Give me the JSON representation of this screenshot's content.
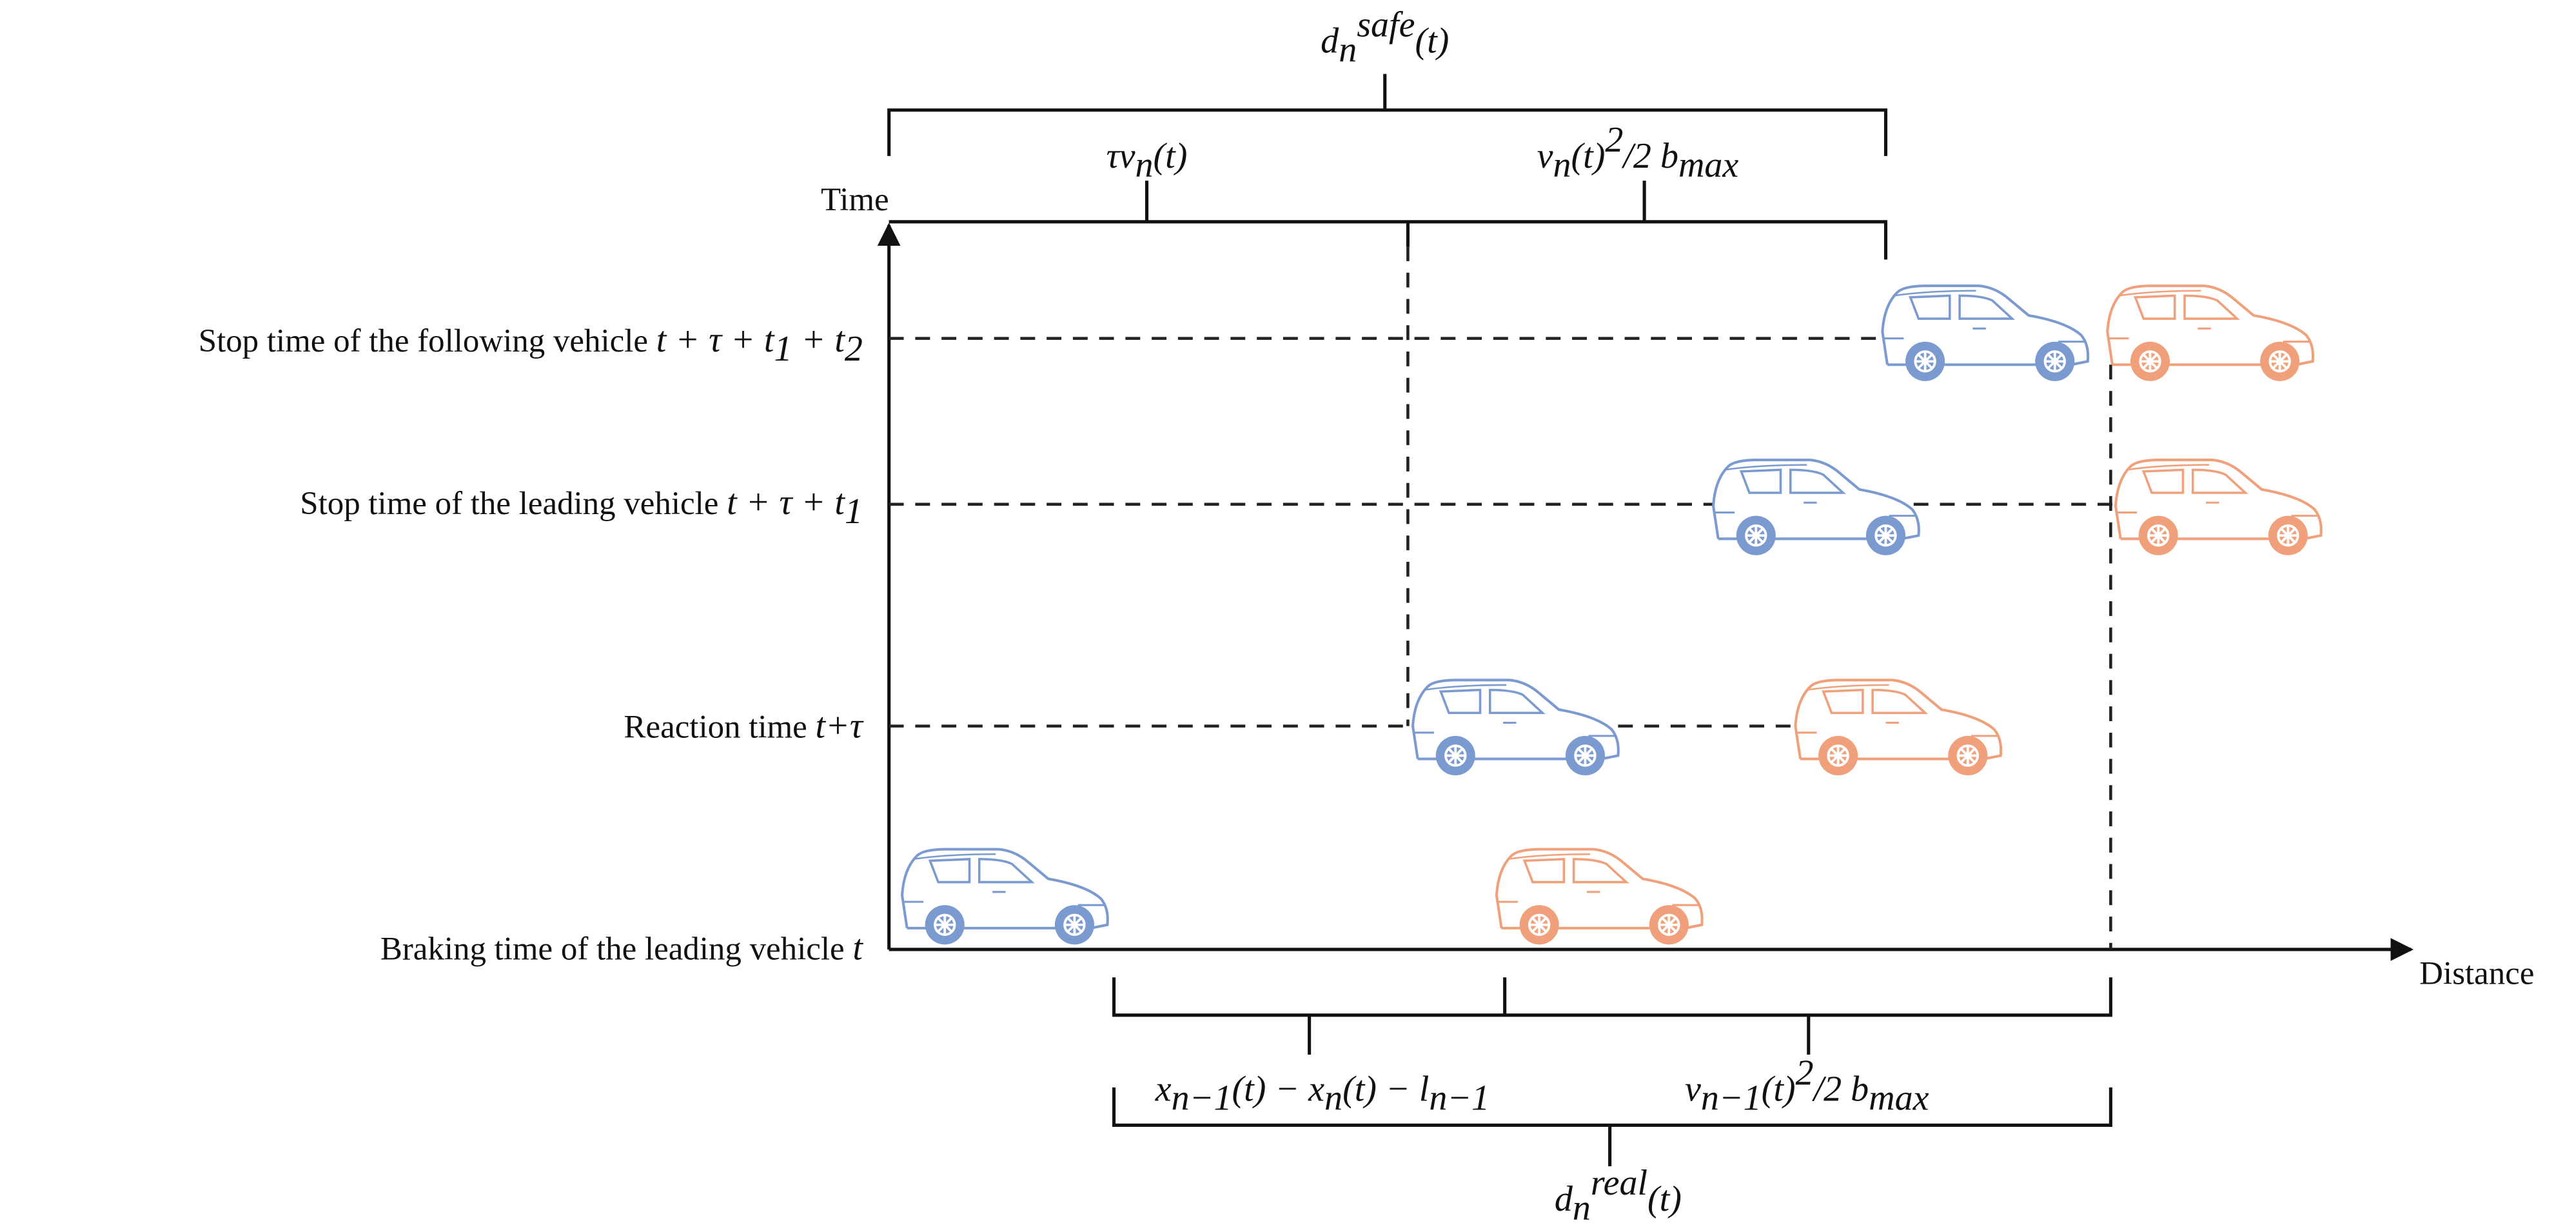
{
  "axes": {
    "y_label": "Time",
    "x_label": "Distance"
  },
  "math": {
    "d_safe": [
      {
        "text": "d",
        "pos": "base"
      },
      {
        "text": "n",
        "pos": "sub"
      },
      {
        "text": "safe",
        "pos": "sup"
      },
      {
        "text": "(t)",
        "pos": "base"
      }
    ],
    "reaction_distance": [
      {
        "text": "τv",
        "pos": "base"
      },
      {
        "text": "n",
        "pos": "sub"
      },
      {
        "text": "(t)",
        "pos": "base"
      }
    ],
    "following_braking": [
      {
        "text": "v",
        "pos": "base"
      },
      {
        "text": "n",
        "pos": "sub"
      },
      {
        "text": "(t)",
        "pos": "base"
      },
      {
        "text": "2",
        "pos": "sup"
      },
      {
        "text": "/2 b",
        "pos": "base"
      },
      {
        "text": "max",
        "pos": "sub"
      }
    ],
    "gap": [
      {
        "text": "x",
        "pos": "base"
      },
      {
        "text": "n−1",
        "pos": "sub"
      },
      {
        "text": "(t) − x",
        "pos": "base"
      },
      {
        "text": "n",
        "pos": "sub"
      },
      {
        "text": "(t) − l",
        "pos": "base"
      },
      {
        "text": "n−1",
        "pos": "sub"
      }
    ],
    "leading_braking": [
      {
        "text": "v",
        "pos": "base"
      },
      {
        "text": "n−1",
        "pos": "sub"
      },
      {
        "text": "(t)",
        "pos": "base"
      },
      {
        "text": "2",
        "pos": "sup"
      },
      {
        "text": "/2 b",
        "pos": "base"
      },
      {
        "text": "max",
        "pos": "sub"
      }
    ],
    "d_real": [
      {
        "text": "d",
        "pos": "base"
      },
      {
        "text": "n",
        "pos": "sub"
      },
      {
        "text": "real",
        "pos": "sup"
      },
      {
        "text": "(t)",
        "pos": "base"
      }
    ]
  },
  "rows": [
    {
      "label": "Stop time of the following vehicle",
      "time": [
        {
          "text": "t + τ + t",
          "pos": "base"
        },
        {
          "text": "1",
          "pos": "sub"
        },
        {
          "text": " + t",
          "pos": "base"
        },
        {
          "text": "2",
          "pos": "sub"
        }
      ]
    },
    {
      "label": "Stop time of the leading vehicle",
      "time": [
        {
          "text": "t + τ + t",
          "pos": "base"
        },
        {
          "text": "1",
          "pos": "sub"
        }
      ]
    },
    {
      "label": "Reaction time",
      "time": [
        {
          "text": "t+τ",
          "pos": "base"
        }
      ]
    },
    {
      "label": "Braking time of the leading vehicle",
      "time": [
        {
          "text": "t",
          "pos": "base"
        }
      ]
    }
  ]
}
